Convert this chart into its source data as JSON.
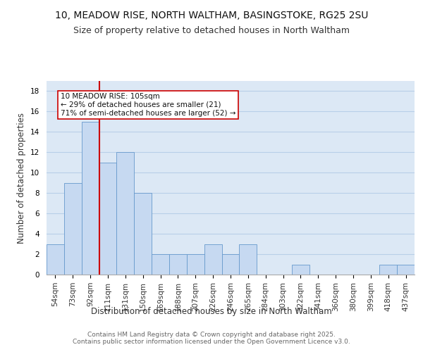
{
  "title_line1": "10, MEADOW RISE, NORTH WALTHAM, BASINGSTOKE, RG25 2SU",
  "title_line2": "Size of property relative to detached houses in North Waltham",
  "xlabel": "Distribution of detached houses by size in North Waltham",
  "ylabel": "Number of detached properties",
  "bar_labels": [
    "54sqm",
    "73sqm",
    "92sqm",
    "111sqm",
    "131sqm",
    "150sqm",
    "169sqm",
    "188sqm",
    "207sqm",
    "226sqm",
    "246sqm",
    "265sqm",
    "284sqm",
    "303sqm",
    "322sqm",
    "341sqm",
    "360sqm",
    "380sqm",
    "399sqm",
    "418sqm",
    "437sqm"
  ],
  "bar_values": [
    3,
    9,
    15,
    11,
    12,
    8,
    2,
    2,
    2,
    3,
    2,
    3,
    0,
    0,
    1,
    0,
    0,
    0,
    0,
    1,
    1
  ],
  "bar_color": "#c6d9f1",
  "bar_edge_color": "#6699cc",
  "grid_color": "#b8cfe8",
  "background_color": "#dce8f5",
  "annotation_text": "10 MEADOW RISE: 105sqm\n← 29% of detached houses are smaller (21)\n71% of semi-detached houses are larger (52) →",
  "annotation_box_color": "#ffffff",
  "annotation_box_edge_color": "#cc0000",
  "vline_x_index": 2.5,
  "vline_color": "#cc0000",
  "ylim": [
    0,
    19
  ],
  "yticks": [
    0,
    2,
    4,
    6,
    8,
    10,
    12,
    14,
    16,
    18
  ],
  "footer_text": "Contains HM Land Registry data © Crown copyright and database right 2025.\nContains public sector information licensed under the Open Government Licence v3.0.",
  "title_fontsize": 10,
  "subtitle_fontsize": 9,
  "axis_label_fontsize": 8.5,
  "tick_fontsize": 7.5,
  "annotation_fontsize": 7.5,
  "footer_fontsize": 6.5
}
